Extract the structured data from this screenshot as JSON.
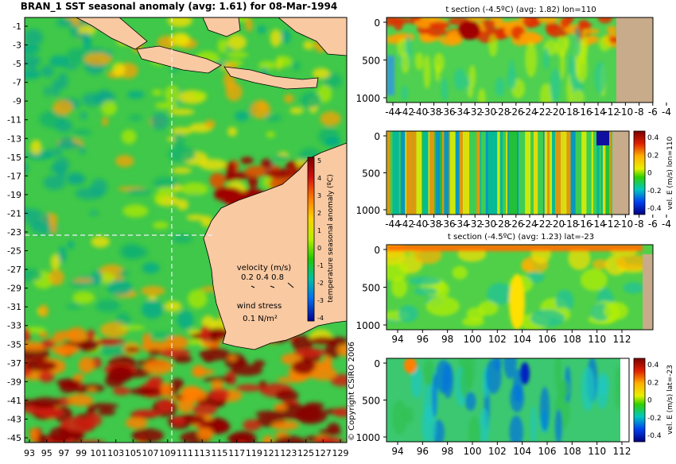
{
  "main_map": {
    "title": "BRAN_1  SST seasonal anomaly (avg: 1.61) for 08-Mar-1994",
    "y_ticks": [
      "-1",
      "-3",
      "-5",
      "-7",
      "-9",
      "-11",
      "-13",
      "-15",
      "-17",
      "-19",
      "-21",
      "-23",
      "-25",
      "-27",
      "-29",
      "-31",
      "-33",
      "-35",
      "-37",
      "-39",
      "-41",
      "-43",
      "-45"
    ],
    "x_ticks": [
      "93",
      "95",
      "97",
      "99",
      "101",
      "103",
      "105",
      "107",
      "109",
      "111",
      "113",
      "115",
      "117",
      "119",
      "121",
      "123",
      "125",
      "127",
      "129"
    ],
    "colorbar_label": "temperature seasonal anomaly (ºC)",
    "colorbar_ticks": [
      "5",
      "4",
      "3",
      "2",
      "1",
      "0",
      "-1",
      "-2",
      "-3",
      "-4"
    ],
    "velocity_label": "velocity (m/s)",
    "velocity_values": "0.2 0.4 0.8",
    "wind_label": "wind stress",
    "wind_value": "0.1 N/m²",
    "copyright": "© Copyright CSIRO 2006"
  },
  "chart_data": [
    {
      "type": "heatmap",
      "title": "BRAN_1  SST seasonal anomaly (avg: 1.61) for 08-Mar-1994",
      "x_range": [
        93,
        130
      ],
      "y_range": [
        -45,
        0
      ],
      "colorbar_range": [
        -4,
        5
      ],
      "colorbar_label": "temperature seasonal anomaly (ºC)",
      "section_lines": {
        "lon": 110,
        "lat": -23
      }
    },
    {
      "type": "heatmap",
      "title": "t section (-4.5ºC) (avg: 1.82) lon=110",
      "x_ticks": [
        -44,
        -42,
        -40,
        -38,
        -36,
        -34,
        -32,
        -30,
        -28,
        -26,
        -24,
        -22,
        -20,
        -18,
        -16,
        -14,
        -12,
        -10,
        -8,
        -6,
        -4
      ],
      "y_ticks": [
        0,
        500,
        1000
      ]
    },
    {
      "type": "heatmap",
      "title": "",
      "x_ticks": [
        -44,
        -42,
        -40,
        -38,
        -36,
        -34,
        -32,
        -30,
        -28,
        -26,
        -24,
        -22,
        -20,
        -18,
        -16,
        -14,
        -12,
        -10,
        -8,
        -6,
        -4
      ],
      "y_ticks": [
        0,
        500,
        1000
      ],
      "colorbar_ticks": [
        0.4,
        0.2,
        0,
        -0.2,
        -0.4
      ],
      "colorbar_label": "vel. E (m/s) lon=110"
    },
    {
      "type": "heatmap",
      "title": "t section (-4.5ºC) (avg: 1.23) lat=-23",
      "x_ticks": [
        94,
        96,
        98,
        100,
        102,
        104,
        106,
        108,
        110,
        112
      ],
      "y_ticks": [
        0,
        500,
        1000
      ]
    },
    {
      "type": "heatmap",
      "title": "",
      "x_ticks": [
        94,
        96,
        98,
        100,
        102,
        104,
        106,
        108,
        110,
        112
      ],
      "y_ticks": [
        0,
        500,
        1000
      ],
      "colorbar_ticks": [
        0.4,
        0.2,
        0,
        -0.2,
        -0.4
      ],
      "colorbar_label": "vel. E (m/s) lat=-23"
    }
  ],
  "sections": [
    {
      "title": "t section (-4.5ºC) (avg: 1.82) lon=110",
      "x_ticks": [
        "-44",
        "-42",
        "-40",
        "-38",
        "-36",
        "-34",
        "-32",
        "-30",
        "-28",
        "-26",
        "-24",
        "-22",
        "-20",
        "-18",
        "-16",
        "-14",
        "-12",
        "-10",
        "-8",
        "-6",
        "-4"
      ],
      "y_ticks": [
        "0",
        "500",
        "1000"
      ]
    },
    {
      "title": "",
      "x_ticks": [
        "-44",
        "-42",
        "-40",
        "-38",
        "-36",
        "-34",
        "-32",
        "-30",
        "-28",
        "-26",
        "-24",
        "-22",
        "-20",
        "-18",
        "-16",
        "-14",
        "-12",
        "-10",
        "-8",
        "-6",
        "-4"
      ],
      "y_ticks": [
        "0",
        "500",
        "1000"
      ],
      "colorbar_ticks": [
        "0.4",
        "0.2",
        "0",
        "-0.2",
        "-0.4"
      ],
      "colorbar_label": "vel. E (m/s) lon=110"
    },
    {
      "title": "t section (-4.5ºC) (avg: 1.23) lat=-23",
      "x_ticks": [
        "94",
        "96",
        "98",
        "100",
        "102",
        "104",
        "106",
        "108",
        "110",
        "112"
      ],
      "y_ticks": [
        "0",
        "500",
        "1000"
      ]
    },
    {
      "title": "",
      "x_ticks": [
        "94",
        "96",
        "98",
        "100",
        "102",
        "104",
        "106",
        "108",
        "110",
        "112"
      ],
      "y_ticks": [
        "0",
        "500",
        "1000"
      ],
      "colorbar_ticks": [
        "0.4",
        "0.2",
        "0",
        "-0.2",
        "-0.4"
      ],
      "colorbar_label": "vel. E (m/s) lat=-23"
    }
  ],
  "colors": {
    "land": "#f9c9a2",
    "section_land": "#c8ab8a",
    "background": "#ffffff",
    "marker_line": "#f0f0ff"
  }
}
